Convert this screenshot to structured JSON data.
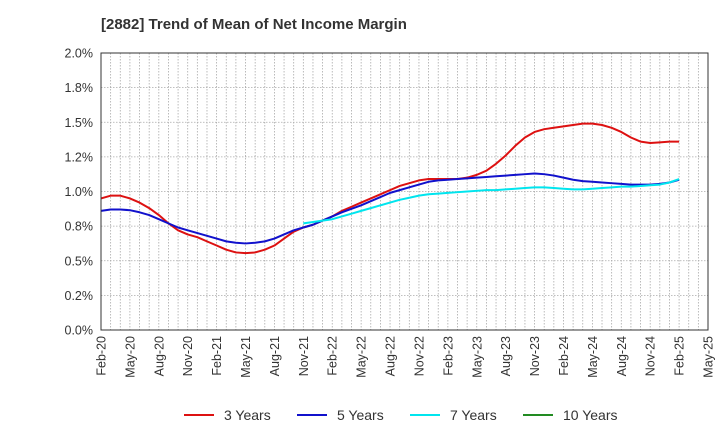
{
  "title": "[2882]  Trend of Mean of Net Income Margin",
  "chart_data": {
    "type": "line",
    "title": "[2882]  Trend of Mean of Net Income Margin",
    "xlabel": "",
    "ylabel": "",
    "ylim": [
      0,
      2.0
    ],
    "y_ticks": [
      "0.0%",
      "0.2%",
      "0.5%",
      "0.8%",
      "1.0%",
      "1.2%",
      "1.5%",
      "1.8%",
      "2.0%"
    ],
    "x_ticks": [
      "Feb-20",
      "May-20",
      "Aug-20",
      "Nov-20",
      "Feb-21",
      "May-21",
      "Aug-21",
      "Nov-21",
      "Feb-22",
      "May-22",
      "Aug-22",
      "Nov-22",
      "Feb-23",
      "May-23",
      "Aug-23",
      "Nov-23",
      "Feb-24",
      "May-24",
      "Aug-24",
      "Nov-24",
      "Feb-25",
      "May-25"
    ],
    "grid": true,
    "legend_position": "bottom",
    "series": [
      {
        "name": "3 Years",
        "color": "#dd1111",
        "points": [
          [
            "Feb-20",
            0.95
          ],
          [
            "Mar-20",
            0.97
          ],
          [
            "Apr-20",
            0.97
          ],
          [
            "May-20",
            0.95
          ],
          [
            "Jun-20",
            0.92
          ],
          [
            "Jul-20",
            0.88
          ],
          [
            "Aug-20",
            0.83
          ],
          [
            "Sep-20",
            0.77
          ],
          [
            "Oct-20",
            0.72
          ],
          [
            "Nov-20",
            0.69
          ],
          [
            "Dec-20",
            0.67
          ],
          [
            "Jan-21",
            0.64
          ],
          [
            "Feb-21",
            0.61
          ],
          [
            "Mar-21",
            0.58
          ],
          [
            "Apr-21",
            0.56
          ],
          [
            "May-21",
            0.555
          ],
          [
            "Jun-21",
            0.56
          ],
          [
            "Jul-21",
            0.58
          ],
          [
            "Aug-21",
            0.61
          ],
          [
            "Sep-21",
            0.66
          ],
          [
            "Oct-21",
            0.71
          ],
          [
            "Nov-21",
            0.74
          ],
          [
            "Dec-21",
            0.76
          ],
          [
            "Jan-22",
            0.79
          ],
          [
            "Feb-22",
            0.82
          ],
          [
            "Mar-22",
            0.86
          ],
          [
            "Apr-22",
            0.89
          ],
          [
            "May-22",
            0.92
          ],
          [
            "Jun-22",
            0.95
          ],
          [
            "Jul-22",
            0.98
          ],
          [
            "Aug-22",
            1.01
          ],
          [
            "Sep-22",
            1.04
          ],
          [
            "Oct-22",
            1.06
          ],
          [
            "Nov-22",
            1.08
          ],
          [
            "Dec-22",
            1.09
          ],
          [
            "Jan-23",
            1.09
          ],
          [
            "Feb-23",
            1.09
          ],
          [
            "Mar-23",
            1.09
          ],
          [
            "Apr-23",
            1.1
          ],
          [
            "May-23",
            1.12
          ],
          [
            "Jun-23",
            1.15
          ],
          [
            "Jul-23",
            1.2
          ],
          [
            "Aug-23",
            1.26
          ],
          [
            "Sep-23",
            1.33
          ],
          [
            "Oct-23",
            1.39
          ],
          [
            "Nov-23",
            1.43
          ],
          [
            "Dec-23",
            1.45
          ],
          [
            "Jan-24",
            1.46
          ],
          [
            "Feb-24",
            1.47
          ],
          [
            "Mar-24",
            1.48
          ],
          [
            "Apr-24",
            1.49
          ],
          [
            "May-24",
            1.49
          ],
          [
            "Jun-24",
            1.48
          ],
          [
            "Jul-24",
            1.46
          ],
          [
            "Aug-24",
            1.43
          ],
          [
            "Sep-24",
            1.39
          ],
          [
            "Oct-24",
            1.36
          ],
          [
            "Nov-24",
            1.35
          ],
          [
            "Dec-24",
            1.355
          ],
          [
            "Jan-25",
            1.36
          ],
          [
            "Feb-25",
            1.36
          ]
        ]
      },
      {
        "name": "5 Years",
        "color": "#1111cc",
        "points": [
          [
            "Feb-20",
            0.86
          ],
          [
            "Mar-20",
            0.87
          ],
          [
            "Apr-20",
            0.87
          ],
          [
            "May-20",
            0.865
          ],
          [
            "Jun-20",
            0.85
          ],
          [
            "Jul-20",
            0.83
          ],
          [
            "Aug-20",
            0.8
          ],
          [
            "Sep-20",
            0.77
          ],
          [
            "Oct-20",
            0.74
          ],
          [
            "Nov-20",
            0.72
          ],
          [
            "Dec-20",
            0.7
          ],
          [
            "Jan-21",
            0.68
          ],
          [
            "Feb-21",
            0.66
          ],
          [
            "Mar-21",
            0.64
          ],
          [
            "Apr-21",
            0.63
          ],
          [
            "May-21",
            0.625
          ],
          [
            "Jun-21",
            0.63
          ],
          [
            "Jul-21",
            0.64
          ],
          [
            "Aug-21",
            0.66
          ],
          [
            "Sep-21",
            0.69
          ],
          [
            "Oct-21",
            0.72
          ],
          [
            "Nov-21",
            0.74
          ],
          [
            "Dec-21",
            0.76
          ],
          [
            "Jan-22",
            0.79
          ],
          [
            "Feb-22",
            0.82
          ],
          [
            "Mar-22",
            0.85
          ],
          [
            "Apr-22",
            0.875
          ],
          [
            "May-22",
            0.9
          ],
          [
            "Jun-22",
            0.93
          ],
          [
            "Jul-22",
            0.96
          ],
          [
            "Aug-22",
            0.99
          ],
          [
            "Sep-22",
            1.01
          ],
          [
            "Oct-22",
            1.03
          ],
          [
            "Nov-22",
            1.05
          ],
          [
            "Dec-22",
            1.07
          ],
          [
            "Jan-23",
            1.08
          ],
          [
            "Feb-23",
            1.085
          ],
          [
            "Mar-23",
            1.09
          ],
          [
            "Apr-23",
            1.095
          ],
          [
            "May-23",
            1.1
          ],
          [
            "Jun-23",
            1.105
          ],
          [
            "Jul-23",
            1.11
          ],
          [
            "Aug-23",
            1.115
          ],
          [
            "Sep-23",
            1.12
          ],
          [
            "Oct-23",
            1.125
          ],
          [
            "Nov-23",
            1.13
          ],
          [
            "Dec-23",
            1.125
          ],
          [
            "Jan-24",
            1.115
          ],
          [
            "Feb-24",
            1.1
          ],
          [
            "Mar-24",
            1.085
          ],
          [
            "Apr-24",
            1.075
          ],
          [
            "May-24",
            1.07
          ],
          [
            "Jun-24",
            1.065
          ],
          [
            "Jul-24",
            1.06
          ],
          [
            "Aug-24",
            1.055
          ],
          [
            "Sep-24",
            1.05
          ],
          [
            "Oct-24",
            1.05
          ],
          [
            "Nov-24",
            1.05
          ],
          [
            "Dec-24",
            1.055
          ],
          [
            "Jan-25",
            1.065
          ],
          [
            "Feb-25",
            1.085
          ]
        ]
      },
      {
        "name": "7 Years",
        "color": "#00e5ee",
        "points": [
          [
            "Nov-21",
            0.77
          ],
          [
            "Dec-21",
            0.78
          ],
          [
            "Jan-22",
            0.79
          ],
          [
            "Feb-22",
            0.8
          ],
          [
            "Mar-22",
            0.82
          ],
          [
            "Apr-22",
            0.84
          ],
          [
            "May-22",
            0.86
          ],
          [
            "Jun-22",
            0.88
          ],
          [
            "Jul-22",
            0.9
          ],
          [
            "Aug-22",
            0.92
          ],
          [
            "Sep-22",
            0.94
          ],
          [
            "Oct-22",
            0.955
          ],
          [
            "Nov-22",
            0.97
          ],
          [
            "Dec-22",
            0.98
          ],
          [
            "Jan-23",
            0.985
          ],
          [
            "Feb-23",
            0.99
          ],
          [
            "Mar-23",
            0.995
          ],
          [
            "Apr-23",
            1.0
          ],
          [
            "May-23",
            1.005
          ],
          [
            "Jun-23",
            1.01
          ],
          [
            "Jul-23",
            1.01
          ],
          [
            "Aug-23",
            1.015
          ],
          [
            "Sep-23",
            1.02
          ],
          [
            "Oct-23",
            1.025
          ],
          [
            "Nov-23",
            1.03
          ],
          [
            "Dec-23",
            1.03
          ],
          [
            "Jan-24",
            1.025
          ],
          [
            "Feb-24",
            1.02
          ],
          [
            "Mar-24",
            1.015
          ],
          [
            "Apr-24",
            1.015
          ],
          [
            "May-24",
            1.02
          ],
          [
            "Jun-24",
            1.025
          ],
          [
            "Jul-24",
            1.03
          ],
          [
            "Aug-24",
            1.035
          ],
          [
            "Sep-24",
            1.035
          ],
          [
            "Oct-24",
            1.04
          ],
          [
            "Nov-24",
            1.045
          ],
          [
            "Dec-24",
            1.05
          ],
          [
            "Jan-25",
            1.065
          ],
          [
            "Feb-25",
            1.09
          ]
        ]
      },
      {
        "name": "10 Years",
        "color": "#228b22",
        "points": []
      }
    ]
  }
}
